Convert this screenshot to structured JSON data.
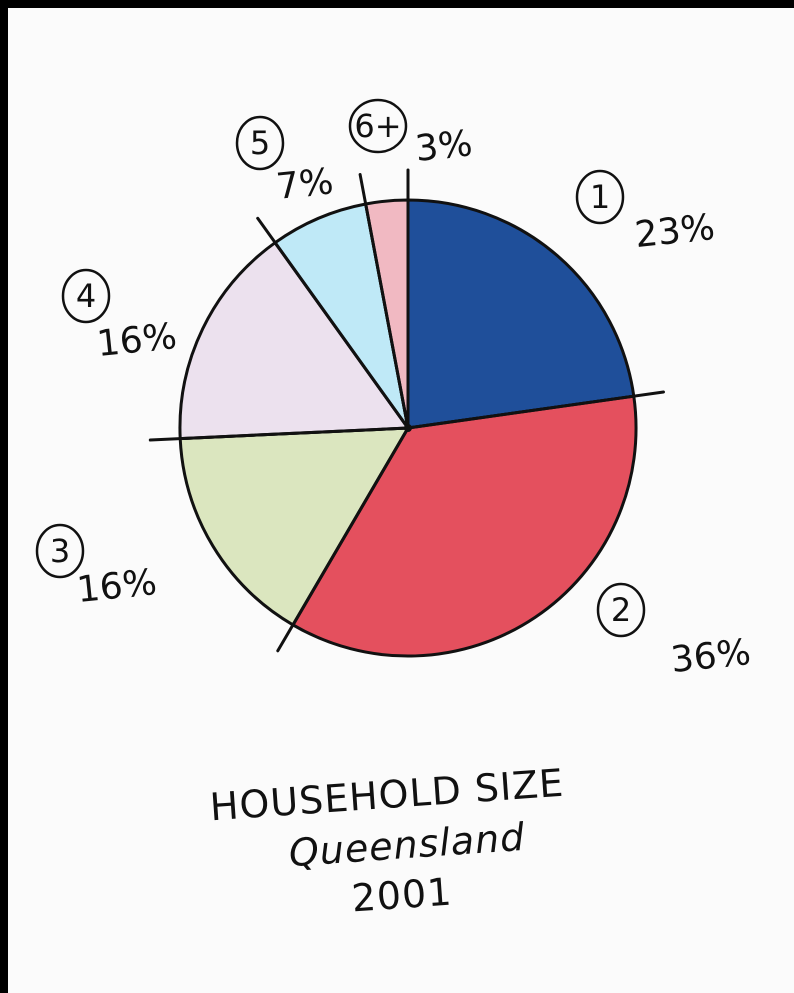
{
  "chart_data": {
    "type": "pie",
    "title": "HOUSEHOLD SIZE",
    "subtitle": "Queensland",
    "year": "2001",
    "slices": [
      {
        "label": "1",
        "value": 23,
        "value_label": "23%",
        "color": "#1f4f9a"
      },
      {
        "label": "2",
        "value": 36,
        "value_label": "36%",
        "color": "#e4505e"
      },
      {
        "label": "3",
        "value": 16,
        "value_label": "16%",
        "color": "#dbe6bf"
      },
      {
        "label": "4",
        "value": 16,
        "value_label": "16%",
        "color": "#ece1ee"
      },
      {
        "label": "5",
        "value": 7,
        "value_label": "7%",
        "color": "#bfe9f7"
      },
      {
        "label": "6+",
        "value": 3,
        "value_label": "3%",
        "color": "#f1b9c2"
      }
    ]
  }
}
